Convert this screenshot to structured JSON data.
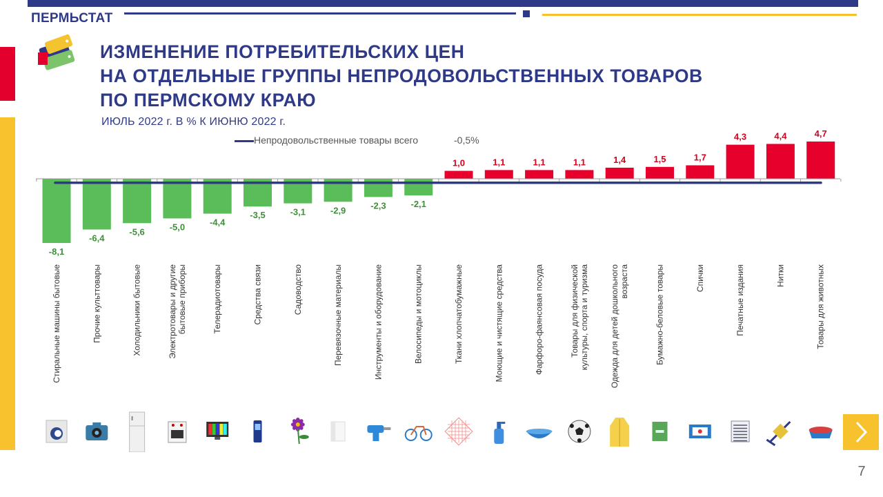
{
  "header": {
    "org": "ПЕРМЬСТАТ"
  },
  "title": {
    "line1": "ИЗМЕНЕНИЕ ПОТРЕБИТЕЛЬСКИХ ЦЕН",
    "line2": "НА ОТДЕЛЬНЫЕ  ГРУППЫ НЕПРОДОВОЛЬСТВЕННЫХ ТОВАРОВ",
    "line3": "ПО ПЕРМСКОМУ КРАЮ"
  },
  "subtitle": "ИЮЛЬ 2022 г. В % К ИЮНЮ 2022 г.",
  "legend": {
    "label": "Непродовольственные товары всего",
    "value": "-0,5%"
  },
  "colors": {
    "positive": "#e8002d",
    "negative": "#5bbd5a",
    "accent": "#2e3a87",
    "yellow": "#f7c22e"
  },
  "chart_data": {
    "type": "bar",
    "categories": [
      "Стиральные  машины бытовые",
      "Прочие культтовары",
      "Холодильники  бытовые",
      "Электротовары и другие бытовые  приборы",
      "Телерадиотовары",
      "Средства  связи",
      "Садоводство",
      "Перевязочные  материалы",
      "Инструменты  и оборудование",
      "Велосипеды и мотоциклы",
      "Ткани  хлопчатобумажные",
      "Моющие и чистящие  средства",
      "Фарфоро-фаянсовая  посуда",
      "Товары  для физической культуры, спорта и туризма",
      "Одежда для детей дошкольного возраста",
      "Бумажно-беловые  товары",
      "Спички",
      "Печатные  издания",
      "Нитки",
      "Товары  для животных"
    ],
    "category_lines": [
      [
        "Стиральные  машины бытовые"
      ],
      [
        "Прочие культтовары"
      ],
      [
        "Холодильники  бытовые"
      ],
      [
        "Электротовары и другие",
        "бытовые  приборы"
      ],
      [
        "Телерадиотовары"
      ],
      [
        "Средства  связи"
      ],
      [
        "Садоводство"
      ],
      [
        "Перевязочные  материалы"
      ],
      [
        "Инструменты  и оборудование"
      ],
      [
        "Велосипеды и мотоциклы"
      ],
      [
        "Ткани  хлопчатобумажные"
      ],
      [
        "Моющие и чистящие  средства"
      ],
      [
        "Фарфоро-фаянсовая  посуда"
      ],
      [
        "Товары  для физической",
        "культуры, спорта и туризма"
      ],
      [
        "Одежда для детей дошкольного",
        "возраста"
      ],
      [
        "Бумажно-беловые  товары"
      ],
      [
        "Спички"
      ],
      [
        "Печатные  издания"
      ],
      [
        "Нитки"
      ],
      [
        "Товары  для животных"
      ]
    ],
    "values": [
      -8.1,
      -6.4,
      -5.6,
      -5.0,
      -4.4,
      -3.5,
      -3.1,
      -2.9,
      -2.3,
      -2.1,
      1.0,
      1.1,
      1.1,
      1.1,
      1.4,
      1.5,
      1.7,
      4.3,
      4.4,
      4.7
    ],
    "labels": [
      "-8,1",
      "-6,4",
      "-5,6",
      "-5,0",
      "-4,4",
      "-3,5",
      "-3,1",
      "-2,9",
      "-2,3",
      "-2,1",
      "1,0",
      "1,1",
      "1,1",
      "1,1",
      "1,4",
      "1,5",
      "1,7",
      "4,3",
      "4,4",
      "4,7"
    ],
    "reference_line": {
      "value": -0.5,
      "label": "Непродовольственные товары всего",
      "value_label": "-0,5%"
    },
    "ylim": [
      -8.1,
      4.7
    ],
    "legend_position": "top-center",
    "grid": false,
    "xlabel": "",
    "ylabel": ""
  },
  "icons": [
    "washing-machine-icon",
    "camera-icon",
    "refrigerator-icon",
    "stove-icon",
    "tv-icon",
    "mobile-phone-icon",
    "flower-icon",
    "bandage-icon",
    "drill-icon",
    "bicycle-icon",
    "fabric-icon",
    "spray-bottle-icon",
    "bowl-icon",
    "soccer-ball-icon",
    "kids-coat-icon",
    "notebook-icon",
    "matchbox-icon",
    "newspaper-icon",
    "thread-spool-icon",
    "pet-bowl-icon"
  ],
  "page_number": "7"
}
